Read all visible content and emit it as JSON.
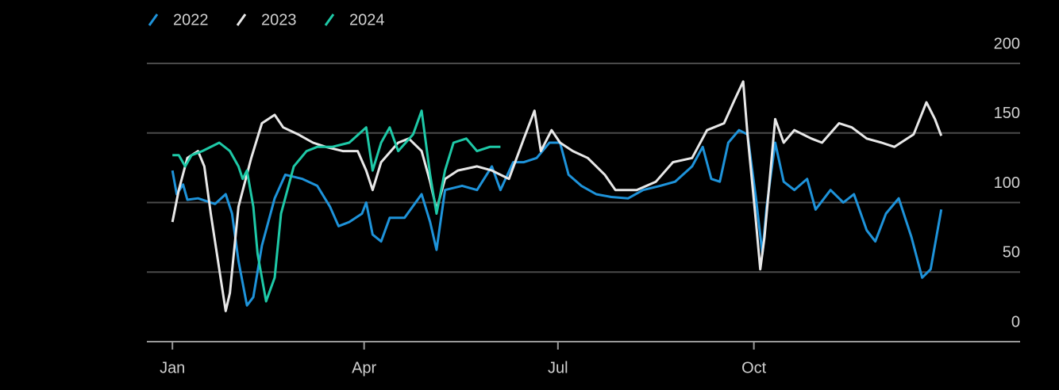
{
  "chart_data": {
    "type": "line",
    "xlim": [
      -12,
      398
    ],
    "xticks": [
      {
        "value": 0,
        "label": "Jan"
      },
      {
        "value": 90,
        "label": "Apr"
      },
      {
        "value": 181,
        "label": "Jul"
      },
      {
        "value": 273,
        "label": "Oct"
      }
    ],
    "ylim": [
      0,
      200
    ],
    "yticks": [
      0,
      50,
      100,
      150,
      200
    ],
    "grid": true,
    "legend": "top-left",
    "series": [
      {
        "name": "2022",
        "color": "#1e93da",
        "x": [
          0,
          2,
          5,
          7,
          12,
          20,
          25,
          28,
          31,
          35,
          38,
          42,
          48,
          53,
          61,
          68,
          74,
          78,
          83,
          89,
          91,
          94,
          98,
          102,
          109,
          117,
          121,
          124,
          128,
          136,
          143,
          150,
          154,
          160,
          165,
          171,
          177,
          182,
          186,
          192,
          199,
          206,
          214,
          221,
          229,
          236,
          244,
          249,
          253,
          257,
          261,
          266,
          270,
          274,
          277,
          279,
          283,
          287,
          292,
          298,
          302,
          309,
          315,
          320,
          326,
          330,
          335,
          341,
          347,
          352,
          356,
          361
        ],
        "values": [
          123,
          106,
          113,
          102,
          103,
          99,
          106,
          92,
          58,
          26,
          32,
          69,
          103,
          120,
          117,
          112,
          97,
          83,
          86,
          92,
          100,
          77,
          72,
          89,
          89,
          106,
          86,
          66,
          109,
          112,
          109,
          126,
          109,
          129,
          129,
          132,
          143,
          143,
          120,
          112,
          106,
          104,
          103,
          109,
          112,
          115,
          126,
          140,
          117,
          115,
          143,
          152,
          149,
          103,
          63,
          97,
          143,
          115,
          109,
          117,
          95,
          109,
          100,
          106,
          80,
          72,
          92,
          103,
          75,
          46,
          52,
          95
        ]
      },
      {
        "name": "2023",
        "color": "#e8e8e8",
        "x": [
          0,
          3,
          7,
          12,
          15,
          18,
          22,
          25,
          27,
          31,
          37,
          42,
          48,
          52,
          59,
          66,
          72,
          80,
          87,
          91,
          94,
          98,
          106,
          111,
          117,
          121,
          124,
          128,
          134,
          143,
          150,
          158,
          165,
          170,
          173,
          178,
          182,
          188,
          195,
          203,
          208,
          218,
          227,
          235,
          244,
          251,
          259,
          264,
          268,
          270,
          274,
          276,
          278,
          283,
          287,
          292,
          300,
          305,
          313,
          319,
          326,
          333,
          339,
          345,
          348,
          354,
          358,
          361
        ],
        "values": [
          86,
          109,
          132,
          137,
          126,
          92,
          52,
          22,
          35,
          97,
          132,
          157,
          163,
          154,
          149,
          143,
          140,
          137,
          137,
          123,
          109,
          129,
          143,
          146,
          137,
          115,
          95,
          117,
          123,
          126,
          123,
          117,
          146,
          166,
          137,
          152,
          143,
          137,
          132,
          120,
          109,
          109,
          115,
          129,
          132,
          152,
          157,
          174,
          187,
          149,
          86,
          52,
          75,
          160,
          143,
          152,
          146,
          143,
          157,
          154,
          146,
          143,
          140,
          146,
          149,
          172,
          160,
          148
        ]
      },
      {
        "name": "2024",
        "color": "#1ec9a7",
        "x": [
          0,
          3,
          6,
          9,
          14,
          22,
          27,
          31,
          33,
          35,
          38,
          40,
          44,
          48,
          51,
          57,
          63,
          68,
          75,
          83,
          91,
          94,
          98,
          102,
          106,
          113,
          117,
          121,
          124,
          128,
          132,
          138,
          143,
          149,
          154
        ],
        "values": [
          134,
          134,
          126,
          134,
          137,
          143,
          137,
          126,
          117,
          123,
          97,
          63,
          29,
          46,
          92,
          126,
          137,
          140,
          140,
          143,
          154,
          123,
          143,
          154,
          137,
          149,
          166,
          120,
          92,
          123,
          143,
          146,
          137,
          140,
          140
        ]
      }
    ]
  }
}
